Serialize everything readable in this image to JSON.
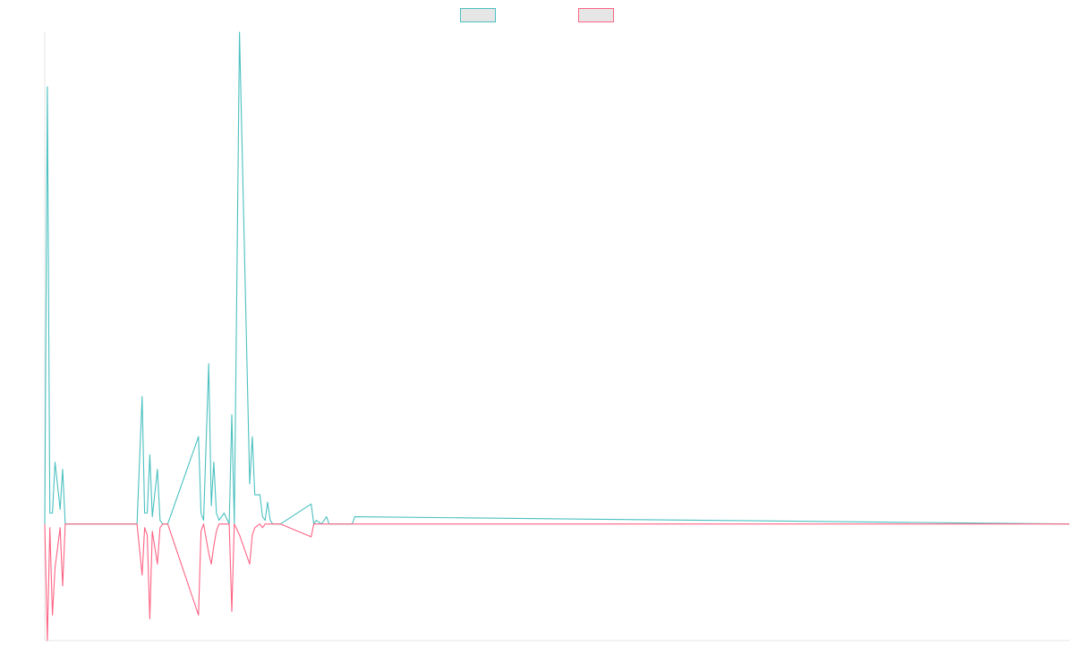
{
  "chart_data": {
    "type": "line",
    "title": "",
    "xlabel": "",
    "ylabel": "",
    "xlim": [
      0,
      200
    ],
    "ylim": [
      -0.32,
      1.35
    ],
    "grid": false,
    "legend_position": "top-center",
    "series": [
      {
        "color": "#4bc0c0",
        "x": [
          0,
          0.5,
          1,
          1.5,
          2,
          3,
          3.5,
          4,
          4.5,
          18,
          19,
          19.5,
          20,
          20.5,
          21,
          22,
          22.5,
          23,
          24,
          30,
          30.5,
          31,
          32,
          32.5,
          33,
          33.5,
          34,
          35,
          36,
          36.5,
          37,
          38,
          40,
          40.5,
          41,
          42,
          42.5,
          43,
          43.5,
          44,
          44.5,
          45,
          46,
          52,
          52.5,
          53,
          54,
          55,
          55.5,
          56,
          60,
          60.5
        ],
        "values": [
          0,
          1.2,
          0.03,
          0.03,
          0.17,
          0.04,
          0.15,
          0,
          0,
          0,
          0.35,
          0.03,
          0.03,
          0.19,
          0.02,
          0.15,
          0.01,
          0,
          0,
          0.24,
          0.03,
          0.01,
          0.44,
          0.05,
          0.17,
          0.03,
          0.01,
          0.03,
          0,
          0.3,
          0,
          1.35,
          0.11,
          0.24,
          0.08,
          0.08,
          0.02,
          0.01,
          0.06,
          0.01,
          0,
          0,
          0,
          0.055,
          0,
          0.01,
          0,
          0.02,
          0,
          0,
          0,
          0.02
        ]
      },
      {
        "color": "#ff6384",
        "x": [
          0,
          0.5,
          1,
          1.5,
          2,
          3,
          3.5,
          4,
          4.5,
          18,
          19,
          19.5,
          20,
          20.5,
          21,
          22,
          22.5,
          23,
          24,
          30,
          30.5,
          31,
          32,
          32.5,
          33,
          33.5,
          34,
          35,
          36,
          36.5,
          37,
          38,
          40,
          40.5,
          41,
          42,
          42.5,
          43,
          43.5,
          44,
          44.5,
          45,
          46,
          52,
          52.5,
          53,
          54,
          55,
          55.5,
          56,
          60,
          60.5
        ],
        "values": [
          0,
          -0.32,
          -0.01,
          -0.25,
          -0.12,
          -0.01,
          -0.17,
          0,
          0,
          0,
          -0.14,
          -0.01,
          -0.03,
          -0.26,
          -0.02,
          -0.11,
          -0.01,
          0,
          0,
          -0.25,
          -0.02,
          0,
          -0.08,
          -0.11,
          -0.06,
          -0.02,
          0,
          0,
          0,
          -0.24,
          0,
          -0.03,
          -0.11,
          -0.03,
          -0.01,
          0,
          -0.01,
          0,
          0,
          0,
          0,
          0,
          0,
          -0.035,
          0,
          0,
          0,
          0,
          0,
          0,
          0,
          0
        ]
      }
    ]
  }
}
